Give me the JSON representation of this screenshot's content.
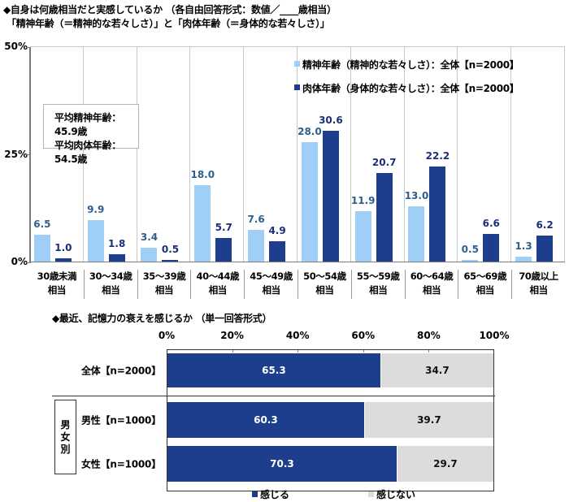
{
  "titles": {
    "top_line1": "◆自身は何歳相当だと実感しているか （各自由回答形式：数値／____歳相当）",
    "top_line2": "「精神年齢（＝精神的な若々しさ）」と「肉体年齢（＝身体的な若々しさ）」",
    "bottom": "◆最近、記憶力の衰えを感じるか （単一回答形式）"
  },
  "avg_box": {
    "line1": "平均精神年齢：45.9歳",
    "line2": "平均肉体年齢：54.5歳"
  },
  "colors": {
    "mental": "#9fcff7",
    "physical": "#1c3e8c",
    "feel": "#1c3e8c",
    "not_feel": "#dcdcdc"
  },
  "chart_data": [
    {
      "type": "bar",
      "title": "自身は何歳相当だと実感しているか",
      "categories": [
        "30歳未満相当",
        "30～34歳相当",
        "35～39歳相当",
        "40～44歳相当",
        "45～49歳相当",
        "50～54歳相当",
        "55～59歳相当",
        "60～64歳相当",
        "65～69歳相当",
        "70歳以上相当"
      ],
      "category_lines": [
        [
          "30歳未満",
          "相当"
        ],
        [
          "30～34歳",
          "相当"
        ],
        [
          "35～39歳",
          "相当"
        ],
        [
          "40～44歳",
          "相当"
        ],
        [
          "45～49歳",
          "相当"
        ],
        [
          "50～54歳",
          "相当"
        ],
        [
          "55～59歳",
          "相当"
        ],
        [
          "60～64歳",
          "相当"
        ],
        [
          "65～69歳",
          "相当"
        ],
        [
          "70歳以上",
          "相当"
        ]
      ],
      "series": [
        {
          "name": "精神年齢（精神的な若々しさ）：全体【n=2000】",
          "values": [
            6.5,
            9.9,
            3.4,
            18.0,
            7.6,
            28.0,
            11.9,
            13.0,
            0.5,
            1.3
          ],
          "labels": [
            "6.5",
            "9.9",
            "3.4",
            "18.0",
            "7.6",
            "28.0",
            "11.9",
            "13.0",
            "0.5",
            "1.3"
          ]
        },
        {
          "name": "肉体年齢（身体的な若々しさ）：全体【n=2000】",
          "values": [
            1.0,
            1.8,
            0.5,
            5.7,
            4.9,
            30.6,
            20.7,
            22.2,
            6.6,
            6.2
          ],
          "labels": [
            "1.0",
            "1.8",
            "0.5",
            "5.7",
            "4.9",
            "30.6",
            "20.7",
            "22.2",
            "6.6",
            "6.2"
          ]
        }
      ],
      "xlabel": "",
      "ylabel": "",
      "ylim": [
        0,
        50
      ],
      "yticks": [
        "0%",
        "25%",
        "50%"
      ],
      "legend_position": "upper right inside",
      "annotations": [
        "平均精神年齢：45.9歳",
        "平均肉体年齢：54.5歳"
      ]
    },
    {
      "type": "bar",
      "orientation": "horizontal-stacked-100",
      "title": "最近、記憶力の衰えを感じるか",
      "categories": [
        "全体【n=2000】",
        "男性【n=1000】",
        "女性【n=1000】"
      ],
      "group_label": "男女別",
      "series": [
        {
          "name": "感じる",
          "values": [
            65.3,
            60.3,
            70.3
          ],
          "labels": [
            "65.3",
            "60.3",
            "70.3"
          ]
        },
        {
          "name": "感じない",
          "values": [
            34.7,
            39.7,
            29.7
          ],
          "labels": [
            "34.7",
            "39.7",
            "29.7"
          ]
        }
      ],
      "xlim": [
        0,
        100
      ],
      "xticks": [
        "0%",
        "20%",
        "40%",
        "60%",
        "80%",
        "100%"
      ],
      "legend_position": "bottom"
    }
  ]
}
